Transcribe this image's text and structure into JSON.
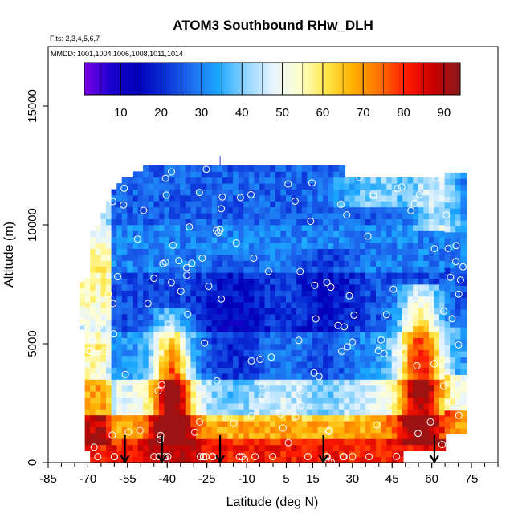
{
  "chart_data": {
    "type": "heatmap",
    "title": "ATOM3 Southbound RHw_DLH",
    "flights_note": "Flts: 2,3,4,5,6,7",
    "mmdd_note": "MMDD: 1001,1004,1006,1008,1011,1014",
    "xlabel": "Latitude (deg N)",
    "ylabel": "Altitude (m)",
    "xlim": [
      -85,
      85
    ],
    "ylim": [
      0,
      17500
    ],
    "x_ticks": [
      -85,
      -70,
      -55,
      -40,
      -25,
      -10,
      5,
      15,
      30,
      45,
      60,
      75
    ],
    "x_minor_step": 5,
    "y_ticks": [
      0,
      5000,
      10000,
      15000
    ],
    "colorbar": {
      "range": [
        1,
        94
      ],
      "ticks": [
        10,
        20,
        30,
        40,
        50,
        60,
        70,
        80,
        90
      ],
      "colors": [
        "#7a00e6",
        "#1a00cc",
        "#0000b8",
        "#0a30d8",
        "#1e6ef0",
        "#1aa8ff",
        "#8ed4ff",
        "#e6f4ff",
        "#ffffd0",
        "#ffe84a",
        "#ffb000",
        "#ff7000",
        "#ff1a00",
        "#c80000",
        "#8a1a1a"
      ]
    },
    "profile_latitudes": [
      -56,
      -42,
      -20,
      19,
      61
    ],
    "sampled_latitudes": [
      -75,
      -72,
      -70,
      -68,
      -66,
      -64,
      -62,
      -60,
      -58,
      -56,
      -54,
      -52,
      -50,
      -48,
      -46,
      -44,
      -42,
      -40,
      -38,
      -36,
      -34,
      -32,
      -30,
      -28,
      -26,
      -24,
      -22,
      -20,
      -18,
      -16,
      -14,
      -12,
      -10,
      -8,
      -6,
      -4,
      -2,
      0,
      2,
      4,
      6,
      8,
      10,
      12,
      14,
      16,
      18,
      20,
      22,
      24,
      26,
      28,
      30,
      32,
      34,
      36,
      38,
      40,
      42,
      44,
      46,
      48,
      50,
      52,
      54,
      56,
      58,
      60,
      62,
      64,
      66,
      68,
      70,
      72
    ],
    "top_altitude": [
      7600,
      7600,
      7600,
      9600,
      10000,
      10400,
      10900,
      11400,
      11700,
      11900,
      12000,
      12100,
      12200,
      12300,
      12400,
      12400,
      12400,
      12400,
      12400,
      12400,
      12400,
      12400,
      12400,
      12400,
      12400,
      12400,
      12400,
      12400,
      12400,
      12400,
      12400,
      12400,
      12400,
      12400,
      12400,
      12400,
      12400,
      12400,
      12400,
      12400,
      12400,
      12400,
      12400,
      12400,
      12400,
      12400,
      12400,
      12400,
      12400,
      12400,
      12400,
      12000,
      12000,
      12000,
      12000,
      12000,
      12000,
      12000,
      12000,
      12000,
      12000,
      12000,
      12000,
      12000,
      12000,
      12000,
      12000,
      12000,
      12000,
      12000,
      12000,
      12000,
      12000,
      12000
    ],
    "bottom_altitude": [
      7600,
      5600,
      500,
      0,
      0,
      0,
      0,
      0,
      0,
      0,
      0,
      0,
      0,
      0,
      0,
      0,
      0,
      0,
      0,
      0,
      0,
      0,
      0,
      0,
      0,
      0,
      0,
      0,
      0,
      0,
      0,
      0,
      0,
      0,
      0,
      0,
      0,
      0,
      0,
      0,
      0,
      0,
      0,
      0,
      0,
      0,
      0,
      0,
      0,
      0,
      0,
      0,
      0,
      0,
      0,
      0,
      0,
      0,
      0,
      0,
      0,
      0,
      500,
      500,
      500,
      500,
      500,
      500,
      500,
      500,
      1200,
      1200,
      1200,
      1200
    ]
  }
}
